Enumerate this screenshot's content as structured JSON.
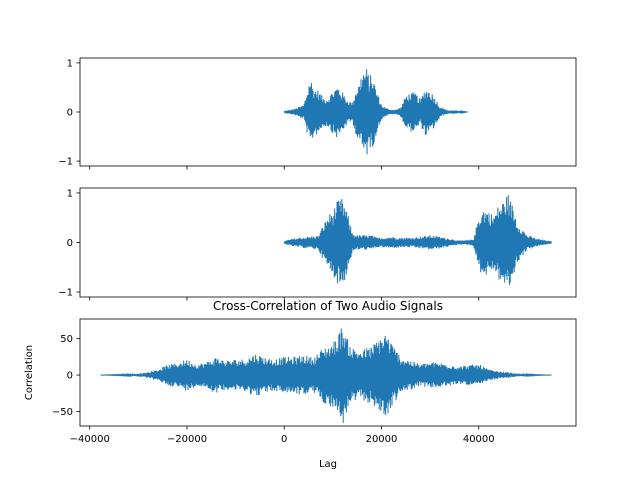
{
  "chart_data": [
    {
      "type": "line",
      "title": "",
      "xlabel": "",
      "ylabel": "",
      "xlim": [
        -42000,
        60000
      ],
      "ylim": [
        -1.1,
        1.1
      ],
      "xticks": [
        -40000,
        -20000,
        0,
        20000,
        40000
      ],
      "xtick_labels_visible": false,
      "yticks": [
        -1,
        0,
        1
      ],
      "ytick_labels": [
        "−1",
        "0",
        "1"
      ],
      "color": "#1f77b4",
      "grid": false,
      "series": [
        {
          "x": [
            0,
            2000,
            4000,
            5000,
            5300,
            6000,
            7000,
            8000,
            9000,
            10000,
            11000,
            12000,
            13000,
            14000,
            15000,
            15500,
            16000,
            17000,
            17500,
            18000,
            19000,
            20000,
            21000,
            22000,
            23000,
            24000,
            25000,
            26000,
            27000,
            28000,
            29000,
            30000,
            31000,
            32000,
            33000,
            34000,
            35000,
            36000,
            37000,
            37800
          ],
          "envelope": [
            0.02,
            0.06,
            0.15,
            0.55,
            0.75,
            0.5,
            0.45,
            0.3,
            0.3,
            0.45,
            0.55,
            0.4,
            0.25,
            0.2,
            0.55,
            0.6,
            0.85,
            0.9,
            0.7,
            0.8,
            0.45,
            0.15,
            0.08,
            0.05,
            0.05,
            0.1,
            0.35,
            0.4,
            0.4,
            0.25,
            0.5,
            0.45,
            0.3,
            0.12,
            0.06,
            0.03,
            0.04,
            0.02,
            0.01,
            0.0
          ]
        }
      ]
    },
    {
      "type": "line",
      "title": "",
      "xlabel": "",
      "ylabel": "",
      "xlim": [
        -42000,
        60000
      ],
      "ylim": [
        -1.1,
        1.1
      ],
      "xticks": [
        -40000,
        -20000,
        0,
        20000,
        40000
      ],
      "xtick_labels_visible": false,
      "yticks": [
        -1,
        0,
        1
      ],
      "ytick_labels": [
        "−1",
        "0",
        "1"
      ],
      "color": "#1f77b4",
      "grid": false,
      "series": [
        {
          "x": [
            0,
            1000,
            3000,
            5000,
            7000,
            8000,
            9000,
            10000,
            11000,
            12000,
            13000,
            14000,
            15000,
            16000,
            17000,
            18000,
            19000,
            20000,
            22000,
            24000,
            26000,
            28000,
            30000,
            32000,
            34000,
            36000,
            38000,
            39000,
            40000,
            41000,
            42000,
            43000,
            44000,
            45000,
            46000,
            47000,
            48000,
            50000,
            52000,
            54000,
            55000
          ],
          "envelope": [
            0.03,
            0.06,
            0.1,
            0.12,
            0.14,
            0.35,
            0.55,
            0.65,
            0.85,
            0.9,
            0.6,
            0.2,
            0.15,
            0.15,
            0.15,
            0.15,
            0.1,
            0.1,
            0.12,
            0.1,
            0.1,
            0.12,
            0.15,
            0.12,
            0.08,
            0.04,
            0.05,
            0.08,
            0.55,
            0.7,
            0.65,
            0.55,
            0.75,
            0.85,
            1.0,
            0.75,
            0.4,
            0.15,
            0.08,
            0.04,
            0.02
          ]
        }
      ]
    },
    {
      "type": "line",
      "title": "Cross-Correlation of Two Audio Signals",
      "xlabel": "Lag",
      "ylabel": "Correlation",
      "xlim": [
        -42000,
        60000
      ],
      "ylim": [
        -70,
        77
      ],
      "xticks": [
        -40000,
        -20000,
        0,
        20000,
        40000
      ],
      "xtick_labels": [
        "−40000",
        "−20000",
        "0",
        "20000",
        "40000"
      ],
      "yticks": [
        -50,
        0,
        50
      ],
      "ytick_labels": [
        "−50",
        "0",
        "50"
      ],
      "color": "#1f77b4",
      "grid": false,
      "series": [
        {
          "x": [
            -37800,
            -35000,
            -32000,
            -30000,
            -28000,
            -26000,
            -24000,
            -22000,
            -20000,
            -18000,
            -16000,
            -14000,
            -12000,
            -10000,
            -8000,
            -6000,
            -4000,
            -2000,
            0,
            2000,
            4000,
            6000,
            8000,
            10000,
            11000,
            12000,
            13000,
            14000,
            16000,
            18000,
            20000,
            21000,
            22000,
            23000,
            24000,
            26000,
            28000,
            30000,
            32000,
            34000,
            36000,
            38000,
            40000,
            42000,
            44000,
            46000,
            48000,
            50000,
            52000,
            55000
          ],
          "envelope": [
            0,
            0.5,
            1,
            2,
            4,
            8,
            14,
            17,
            22,
            15,
            18,
            25,
            20,
            22,
            22,
            30,
            25,
            22,
            25,
            25,
            28,
            24,
            38,
            45,
            55,
            70,
            50,
            38,
            35,
            40,
            55,
            60,
            45,
            35,
            25,
            20,
            15,
            18,
            17,
            15,
            12,
            14,
            15,
            8,
            5,
            4,
            2,
            1,
            0.5,
            0
          ]
        }
      ]
    }
  ]
}
